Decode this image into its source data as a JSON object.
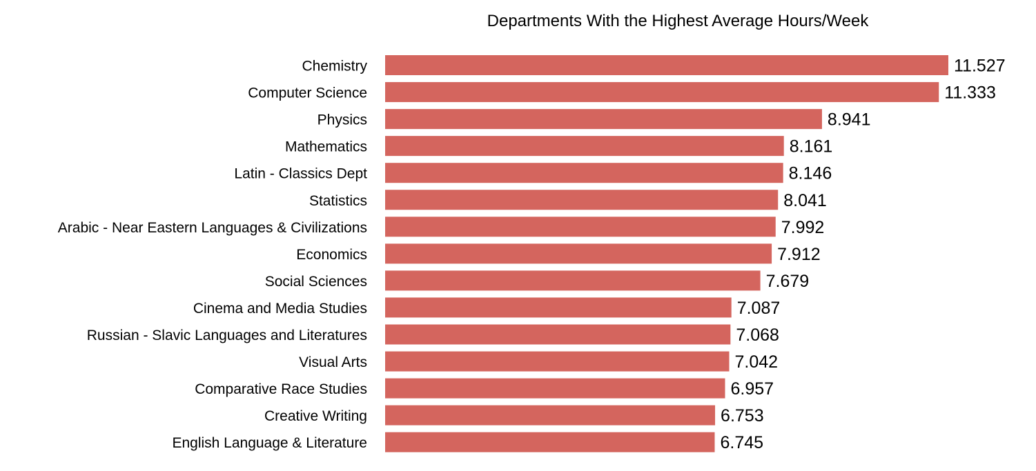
{
  "chart_data": {
    "type": "bar",
    "orientation": "horizontal",
    "title": "Departments With the Highest Average Hours/Week",
    "xlabel": "",
    "ylabel": "",
    "grid": false,
    "legend": "none",
    "xlim": [
      0,
      11.527
    ],
    "bar_color": "#d4655e",
    "categories": [
      "Chemistry",
      "Computer Science",
      "Physics",
      "Mathematics",
      "Latin - Classics  Dept",
      "Statistics",
      "Arabic - Near Eastern Languages & Civilizations",
      "Economics",
      "Social Sciences",
      "Cinema and Media Studies",
      "Russian - Slavic Languages and Literatures",
      "Visual Arts",
      "Comparative Race Studies",
      "Creative Writing",
      "English Language & Literature"
    ],
    "values": [
      11.527,
      11.333,
      8.941,
      8.161,
      8.146,
      8.041,
      7.992,
      7.912,
      7.679,
      7.087,
      7.068,
      7.042,
      6.957,
      6.753,
      6.745
    ],
    "value_labels": [
      "11.527",
      "11.333",
      "8.941",
      "8.161",
      "8.146",
      "8.041",
      "7.992",
      "7.912",
      "7.679",
      "7.087",
      "7.068",
      "7.042",
      "6.957",
      "6.753",
      "6.745"
    ]
  }
}
